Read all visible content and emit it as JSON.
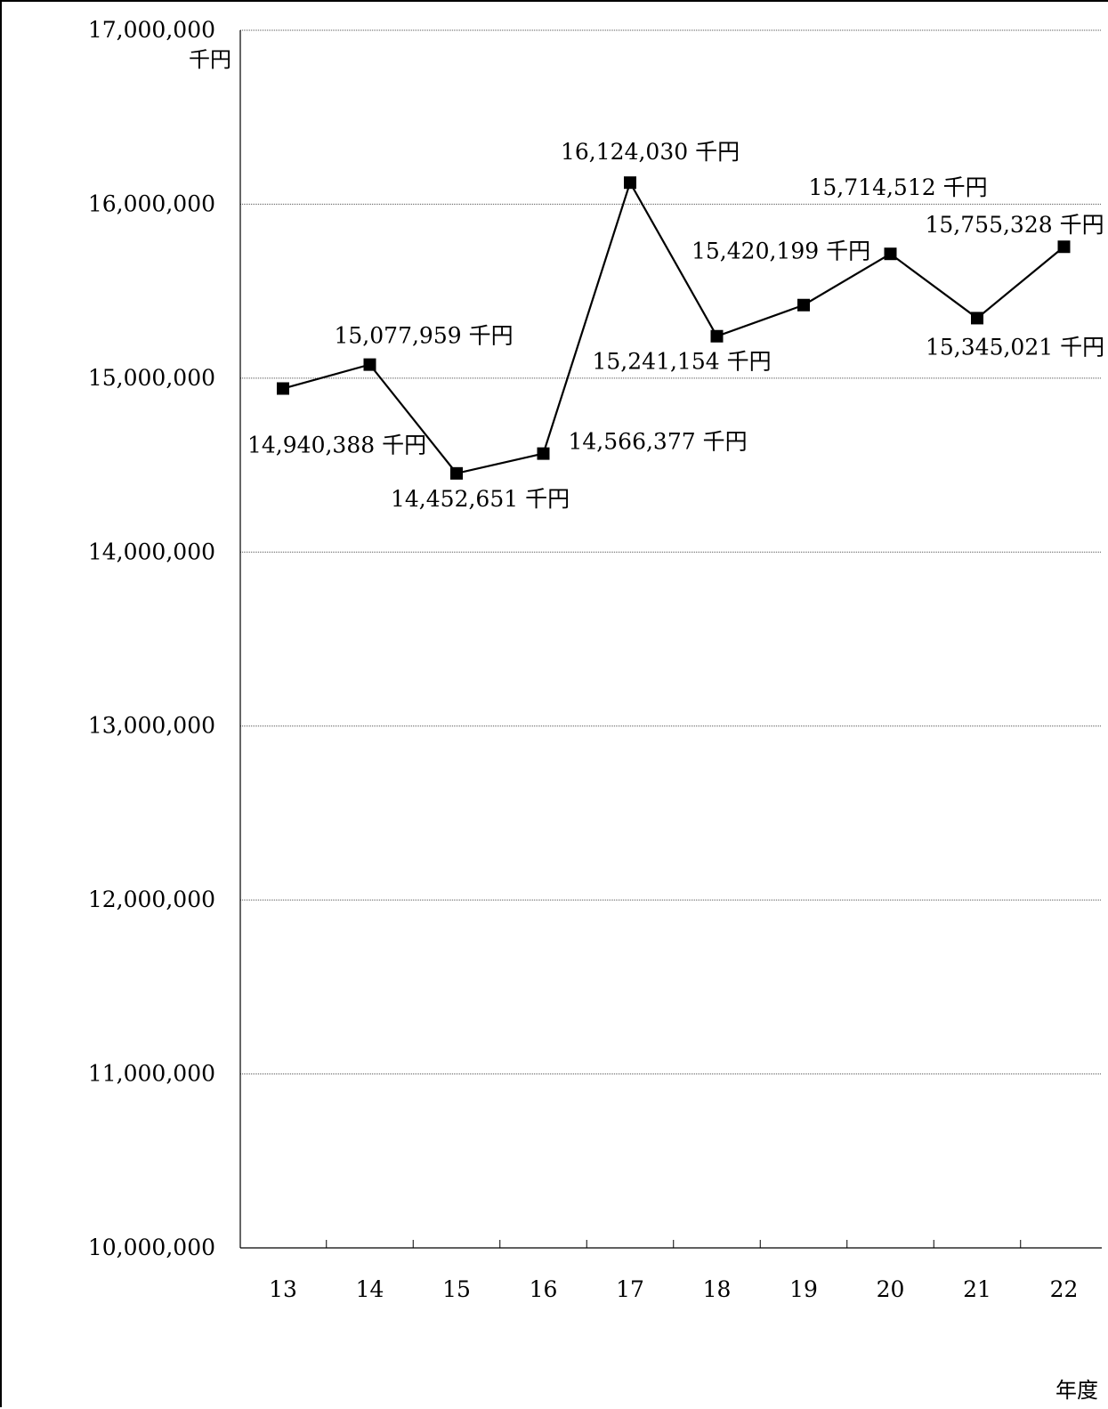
{
  "chart_data": {
    "type": "line",
    "y_unit_label": "千円",
    "x_unit_label": "年度",
    "categories": [
      "13",
      "14",
      "15",
      "16",
      "17",
      "18",
      "19",
      "20",
      "21",
      "22"
    ],
    "series": [
      {
        "values": [
          14940388,
          15077959,
          14452651,
          14566377,
          16124030,
          15241154,
          15420199,
          15714512,
          15345021,
          15755328
        ],
        "data_labels": [
          "14,940,388 千円",
          "15,077,959 千円",
          "14,452,651 千円",
          "14,566,377 千円",
          "16,124,030 千円",
          "15,241,154 千円",
          "15,420,199 千円",
          "15,714,512 千円",
          "15,345,021 千円",
          "15,755,328 千円"
        ]
      }
    ],
    "ylim": [
      10000000,
      17000000
    ],
    "y_ticks": [
      {
        "value": 10000000,
        "label": "10,000,000"
      },
      {
        "value": 11000000,
        "label": "11,000,000"
      },
      {
        "value": 12000000,
        "label": "12,000,000"
      },
      {
        "value": 13000000,
        "label": "13,000,000"
      },
      {
        "value": 14000000,
        "label": "14,000,000"
      },
      {
        "value": 15000000,
        "label": "15,000,000"
      },
      {
        "value": 16000000,
        "label": "16,000,000"
      },
      {
        "value": 17000000,
        "label": "17,000,000"
      }
    ],
    "grid": true,
    "marker": "square",
    "line_color": "#000000"
  }
}
